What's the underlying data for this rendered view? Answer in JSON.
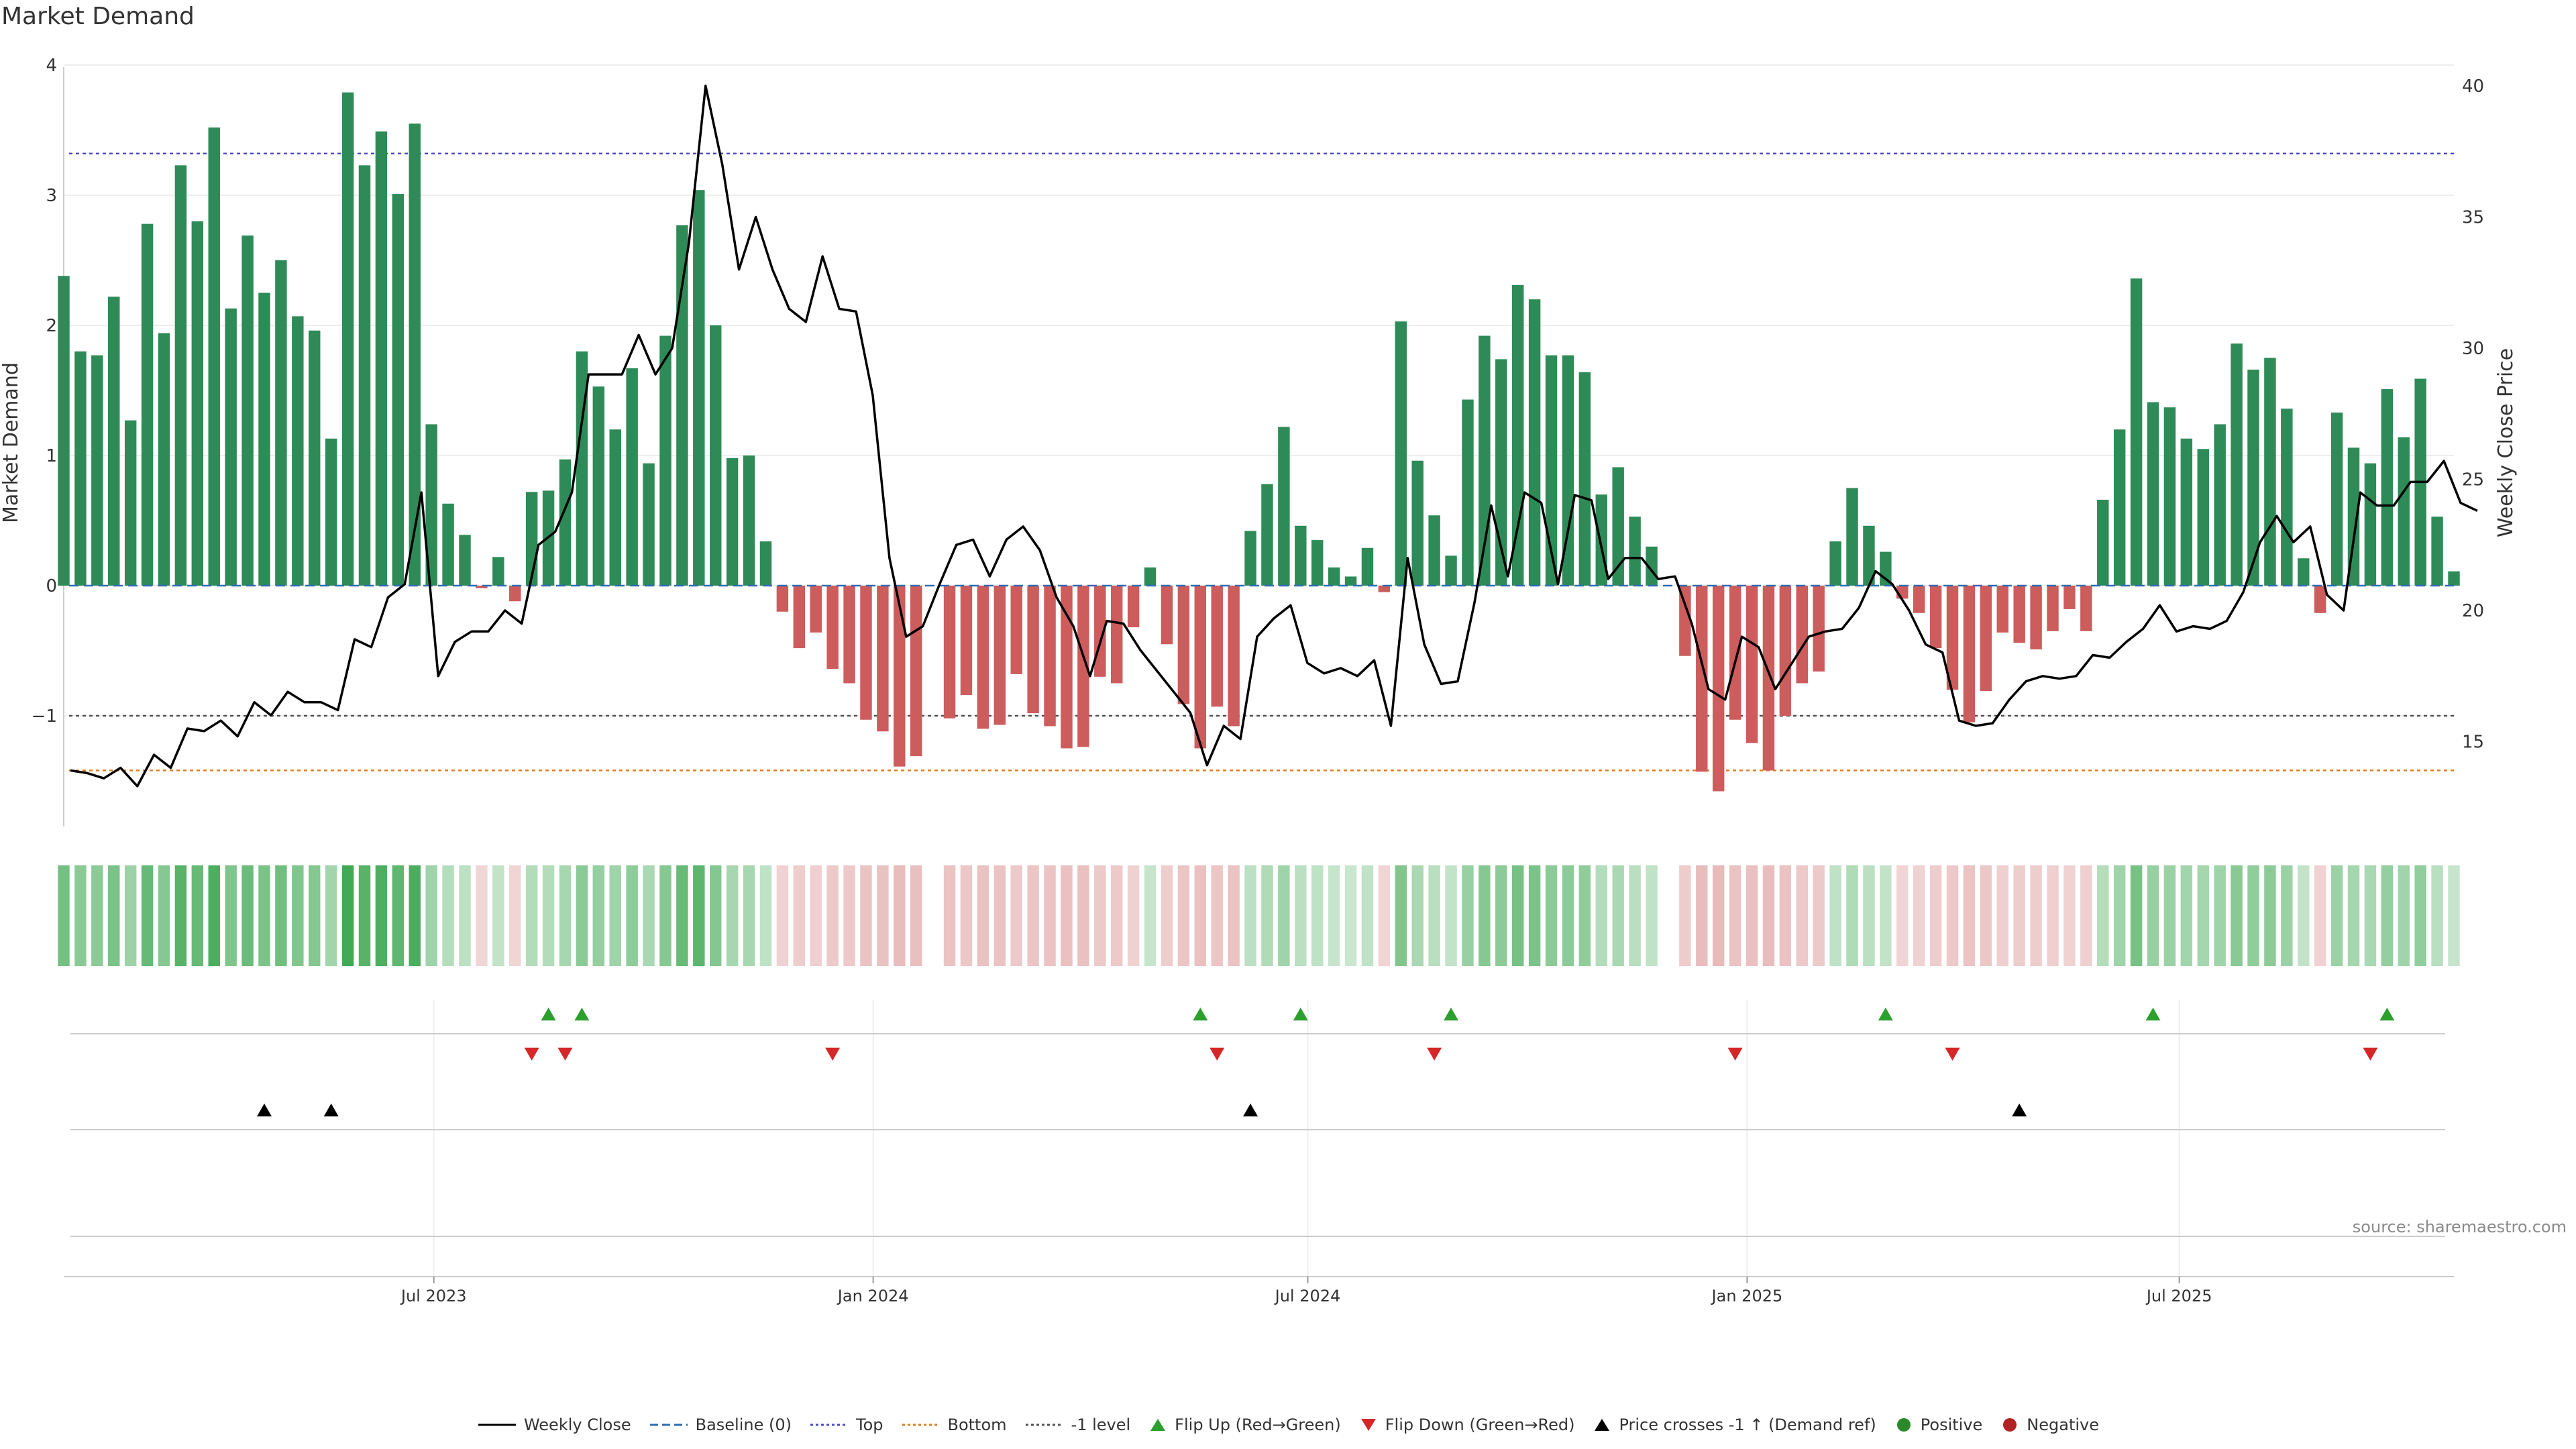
{
  "title": "Market Demand",
  "source_text": "source: sharemaestro.com",
  "chart_data": {
    "type": "bar",
    "title": "Market Demand",
    "ylabel": "Market Demand",
    "y2label": "Weekly Close Price",
    "ylim": [
      -1.9,
      4.1
    ],
    "y2lim": [
      11.5,
      41
    ],
    "yticks": [
      -1,
      0,
      1,
      2,
      3,
      4
    ],
    "y2ticks": [
      15,
      20,
      25,
      30,
      35,
      40
    ],
    "x_start": "2023-01-27",
    "x_end": "2025-10-24",
    "x_tick_dates": [
      "2023-07-01",
      "2024-01-01",
      "2024-07-01",
      "2025-01-01",
      "2025-07-01"
    ],
    "x_tick_labels": [
      "Jul 2023",
      "Jan 2024",
      "Jul 2024",
      "Jan 2025",
      "Jul 2025"
    ],
    "reference_lines": {
      "top": 3.32,
      "bottom": -1.42,
      "minus_one": -1,
      "baseline": 0
    },
    "series": [
      {
        "name": "Market Demand",
        "values": [
          2.38,
          1.8,
          1.77,
          2.22,
          1.27,
          2.78,
          1.94,
          3.23,
          2.8,
          3.52,
          2.13,
          2.69,
          2.25,
          2.5,
          2.07,
          1.96,
          1.13,
          3.79,
          3.23,
          3.49,
          3.01,
          3.55,
          1.24,
          0.63,
          0.39,
          -0.02,
          0.22,
          -0.12,
          0.72,
          0.73,
          0.97,
          1.8,
          1.53,
          1.2,
          1.67,
          0.94,
          1.92,
          2.77,
          3.04,
          2.0,
          0.98,
          1.0,
          0.34,
          -0.2,
          -0.48,
          -0.36,
          -0.64,
          -0.75,
          -1.03,
          -1.12,
          -1.39,
          -1.31,
          null,
          -1.02,
          -0.84,
          -1.1,
          -1.07,
          -0.68,
          -0.98,
          -1.08,
          -1.25,
          -1.24,
          -0.7,
          -0.75,
          -0.32,
          0.14,
          -0.45,
          -0.91,
          -1.25,
          -0.93,
          -1.08,
          0.42,
          0.78,
          1.22,
          0.46,
          0.35,
          0.14,
          0.07,
          0.29,
          -0.05,
          2.03,
          0.96,
          0.54,
          0.23,
          1.43,
          1.92,
          1.74,
          2.31,
          2.2,
          1.77,
          1.77,
          1.64,
          0.7,
          0.91,
          0.53,
          0.3,
          null,
          -0.54,
          -1.43,
          -1.58,
          -1.03,
          -1.21,
          -1.42,
          -1.0,
          -0.75,
          -0.66,
          0.34,
          0.75,
          0.46,
          0.26,
          -0.1,
          -0.21,
          -0.48,
          -0.8,
          -1.05,
          -0.81,
          -0.36,
          -0.44,
          -0.49,
          -0.35,
          -0.18,
          -0.35,
          0.66,
          1.2,
          2.36,
          1.41,
          1.37,
          1.13,
          1.05,
          1.24,
          1.86,
          1.66,
          1.75,
          1.36,
          0.21,
          -0.21,
          1.33,
          1.06,
          0.94,
          1.51,
          1.14,
          1.59,
          0.53,
          0.11
        ]
      },
      {
        "name": "Weekly Close",
        "axis": "right",
        "values": [
          13.9,
          13.8,
          13.6,
          14.0,
          13.3,
          14.5,
          14.0,
          15.5,
          15.4,
          15.8,
          15.2,
          16.5,
          16.0,
          16.9,
          16.5,
          16.5,
          16.2,
          18.9,
          18.6,
          20.5,
          21.0,
          24.5,
          17.5,
          18.8,
          19.2,
          19.2,
          20.0,
          19.5,
          22.5,
          23.0,
          24.5,
          29.0,
          29.0,
          29.0,
          30.5,
          29.0,
          30.0,
          34.0,
          40.0,
          37.0,
          33.0,
          35.0,
          33.0,
          31.5,
          31.0,
          33.5,
          31.5,
          31.4,
          28.2,
          22.0,
          19.0,
          19.4,
          21.0,
          22.5,
          22.7,
          21.3,
          22.7,
          23.2,
          22.3,
          20.5,
          19.4,
          17.5,
          19.6,
          19.5,
          18.5,
          17.7,
          16.9,
          16.1,
          14.1,
          15.6,
          15.1,
          19.0,
          19.7,
          20.2,
          18.0,
          17.6,
          17.8,
          17.5,
          18.1,
          15.6,
          22.0,
          18.7,
          17.2,
          17.3,
          20.3,
          24.0,
          21.3,
          24.5,
          24.1,
          21.0,
          24.4,
          24.2,
          21.2,
          22.0,
          22.0,
          21.2,
          21.3,
          19.5,
          17.0,
          16.6,
          19.0,
          18.6,
          17.0,
          18.0,
          19.0,
          19.2,
          19.3,
          20.1,
          21.5,
          21.0,
          20.0,
          18.7,
          18.4,
          15.8,
          15.6,
          15.7,
          16.6,
          17.3,
          17.5,
          17.4,
          17.5,
          18.3,
          18.2,
          18.8,
          19.3,
          20.2,
          19.2,
          19.4,
          19.3,
          19.6,
          20.7,
          22.6,
          23.6,
          22.6,
          23.2,
          20.6,
          20.0,
          24.5,
          24.0,
          24.0,
          24.9,
          24.9,
          25.7,
          24.1,
          23.8
        ]
      }
    ],
    "flip_up": [
      "2023-08-18",
      "2023-09-01",
      "2024-05-17",
      "2024-06-28",
      "2024-08-30",
      "2025-02-28",
      "2025-06-20",
      "2025-09-26"
    ],
    "flip_down": [
      "2023-08-11",
      "2023-08-25",
      "2023-12-15",
      "2024-05-24",
      "2024-08-23",
      "2024-12-27",
      "2025-03-28",
      "2025-09-19"
    ],
    "price_cross": [
      "2023-04-21",
      "2023-05-19",
      "2024-06-07",
      "2025-04-25"
    ],
    "legend": [
      {
        "label": "Weekly Close",
        "symbol": "line",
        "color": "#000000"
      },
      {
        "label": "Baseline (0)",
        "symbol": "dash",
        "color": "#2e6db4"
      },
      {
        "label": "Top",
        "symbol": "dot",
        "color": "#4b4bc8"
      },
      {
        "label": "Bottom",
        "symbol": "dot",
        "color": "#e07d1a"
      },
      {
        "label": "-1 level",
        "symbol": "dot",
        "color": "#505050"
      },
      {
        "label": "Flip Up (Red→Green)",
        "symbol": "tri-up",
        "color": "#2ca02c"
      },
      {
        "label": "Flip Down (Green→Red)",
        "symbol": "tri-down",
        "color": "#d62728"
      },
      {
        "label": "Price crosses -1 ↑ (Demand ref)",
        "symbol": "tri-up",
        "color": "#000000"
      },
      {
        "label": "Positive",
        "symbol": "circle",
        "color": "#2a8a2a"
      },
      {
        "label": "Negative",
        "symbol": "circle",
        "color": "#b22222"
      }
    ]
  },
  "colors": {
    "positive_bar": "#2e8b57",
    "negative_bar": "#cd5c5c"
  }
}
